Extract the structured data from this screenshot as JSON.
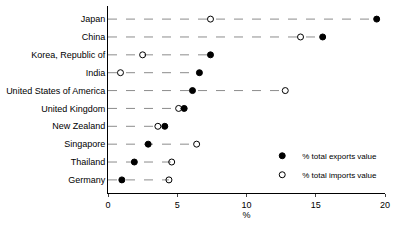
{
  "chart_data": {
    "type": "dot",
    "orientation": "horizontal",
    "categories": [
      "Japan",
      "China",
      "Korea, Republic of",
      "India",
      "United States of America",
      "United Kingdom",
      "New Zealand",
      "Singapore",
      "Thailand",
      "Germany"
    ],
    "series": [
      {
        "name": "% total exports value",
        "color": "#000000",
        "marker": "circle",
        "values": [
          19.4,
          15.5,
          7.4,
          6.6,
          6.1,
          5.5,
          4.1,
          2.9,
          1.9,
          1.0
        ]
      },
      {
        "name": "% total imports value",
        "color": "#000000",
        "marker": "circle-open",
        "values": [
          7.4,
          13.9,
          2.5,
          0.9,
          12.8,
          5.1,
          3.6,
          6.4,
          4.6,
          4.4
        ]
      }
    ],
    "x_label": "%",
    "xlim": [
      0,
      20
    ],
    "xticks": [
      0,
      5,
      10,
      15,
      20
    ],
    "legend": "bottom right"
  }
}
